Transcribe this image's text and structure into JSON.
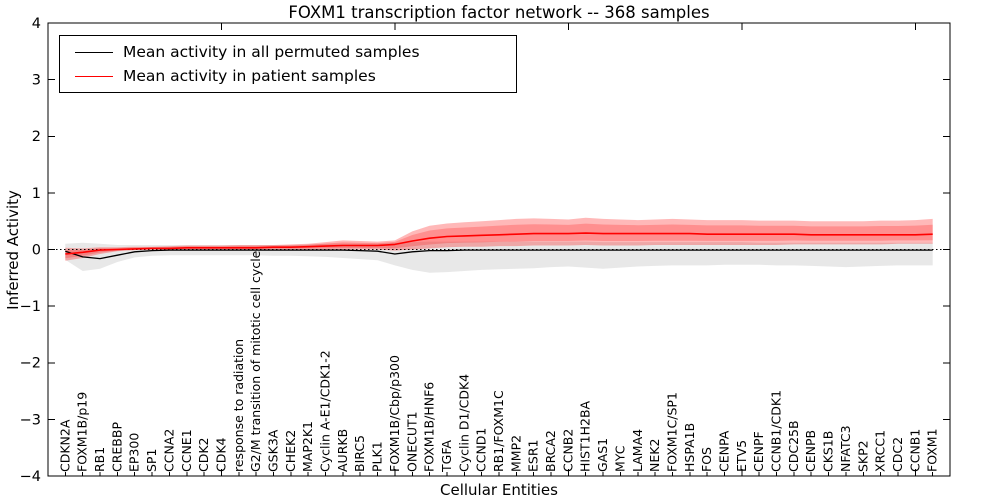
{
  "chart_data": {
    "type": "line",
    "title": "FOXM1 transcription factor network -- 368 samples",
    "xlabel": "Cellular Entities",
    "ylabel": "Inferred Activity",
    "ylim": [
      -4,
      4
    ],
    "xlim": [
      0,
      52
    ],
    "ytick_values": [
      4,
      3,
      2,
      1,
      0,
      -1,
      -2,
      -3,
      -4
    ],
    "ytick_labels": [
      "4",
      "3",
      "2",
      "1",
      "0",
      "−1",
      "−2",
      "−3",
      "−4"
    ],
    "xticks_major": [
      10,
      20,
      30,
      40,
      50
    ],
    "grid": false,
    "legend_position": "upper left",
    "zero_line": 0,
    "categories": [
      "CDKN2A",
      "FOXM1B/p19",
      "RB1",
      "CREBBP",
      "EP300",
      "SP1",
      "CCNA2",
      "CCNE1",
      "CDK2",
      "CDK4",
      "response to radiation",
      "G2/M transition of mitotic cell cycle",
      "GSK3A",
      "CHEK2",
      "MAP2K1",
      "Cyclin A-E1/CDK1-2",
      "AURKB",
      "BIRC5",
      "PLK1",
      "FOXM1B/Cbp/p300",
      "ONECUT1",
      "FOXM1B/HNF6",
      "TGFA",
      "Cyclin D1/CDK4",
      "CCND1",
      "RB1/FOXM1C",
      "MMP2",
      "ESR1",
      "BRCA2",
      "CCNB2",
      "HIST1H2BA",
      "GAS1",
      "MYC",
      "LAMA4",
      "NEK2",
      "FOXM1C/SP1",
      "HSPA1B",
      "FOS",
      "CENPA",
      "ETV5",
      "CENPF",
      "CCNB1/CDK1",
      "CDC25B",
      "CENPB",
      "CKS1B",
      "NFATC3",
      "SKP2",
      "XRCC1",
      "CDC2",
      "CCNB1",
      "FOXM1"
    ],
    "series": [
      {
        "name": "Mean activity in all permuted samples",
        "color": "#000000",
        "values": [
          -0.03,
          -0.13,
          -0.16,
          -0.1,
          -0.04,
          -0.02,
          -0.01,
          -0.01,
          -0.01,
          -0.01,
          -0.01,
          -0.01,
          -0.01,
          -0.01,
          -0.01,
          -0.01,
          -0.01,
          -0.02,
          -0.03,
          -0.08,
          -0.04,
          -0.02,
          -0.02,
          -0.01,
          -0.01,
          -0.01,
          -0.01,
          -0.01,
          -0.01,
          -0.01,
          -0.01,
          -0.01,
          -0.01,
          -0.01,
          -0.01,
          -0.01,
          -0.01,
          -0.01,
          -0.01,
          -0.01,
          -0.01,
          -0.01,
          -0.01,
          -0.01,
          -0.01,
          -0.01,
          -0.01,
          -0.01,
          -0.01,
          -0.01,
          -0.01
        ]
      },
      {
        "name": "Mean activity in patient samples",
        "color": "#ff0000",
        "values": [
          -0.08,
          -0.05,
          -0.01,
          0.0,
          0.01,
          0.02,
          0.02,
          0.03,
          0.03,
          0.03,
          0.03,
          0.03,
          0.04,
          0.04,
          0.05,
          0.06,
          0.07,
          0.07,
          0.07,
          0.09,
          0.15,
          0.2,
          0.23,
          0.24,
          0.25,
          0.26,
          0.27,
          0.28,
          0.28,
          0.28,
          0.29,
          0.28,
          0.28,
          0.28,
          0.28,
          0.28,
          0.28,
          0.27,
          0.27,
          0.27,
          0.27,
          0.27,
          0.27,
          0.26,
          0.26,
          0.26,
          0.26,
          0.26,
          0.26,
          0.26,
          0.27
        ]
      }
    ],
    "bands": [
      {
        "name": "permuted-samples-range",
        "color": "#787878",
        "opacity": 0.17,
        "low": [
          -0.18,
          -0.38,
          -0.34,
          -0.22,
          -0.14,
          -0.11,
          -0.1,
          -0.1,
          -0.1,
          -0.1,
          -0.1,
          -0.1,
          -0.11,
          -0.11,
          -0.12,
          -0.13,
          -0.15,
          -0.17,
          -0.19,
          -0.28,
          -0.36,
          -0.41,
          -0.4,
          -0.38,
          -0.36,
          -0.35,
          -0.34,
          -0.33,
          -0.31,
          -0.3,
          -0.32,
          -0.34,
          -0.32,
          -0.3,
          -0.29,
          -0.28,
          -0.28,
          -0.28,
          -0.27,
          -0.27,
          -0.27,
          -0.28,
          -0.28,
          -0.29,
          -0.3,
          -0.31,
          -0.3,
          -0.29,
          -0.28,
          -0.28,
          -0.28
        ],
        "high": [
          0.1,
          0.12,
          0.1,
          0.08,
          0.08,
          0.08,
          0.08,
          0.08,
          0.08,
          0.08,
          0.08,
          0.08,
          0.08,
          0.08,
          0.09,
          0.1,
          0.1,
          0.1,
          0.1,
          0.12,
          0.13,
          0.14,
          0.14,
          0.14,
          0.14,
          0.14,
          0.14,
          0.14,
          0.14,
          0.14,
          0.14,
          0.13,
          0.13,
          0.13,
          0.13,
          0.13,
          0.13,
          0.13,
          0.13,
          0.13,
          0.12,
          0.12,
          0.12,
          0.12,
          0.12,
          0.12,
          0.12,
          0.12,
          0.12,
          0.12,
          0.12
        ]
      },
      {
        "name": "patient-samples-range",
        "color": "#ff0000",
        "opacity": 0.28,
        "low": [
          -0.2,
          -0.15,
          -0.08,
          -0.03,
          -0.01,
          0.0,
          0.0,
          0.0,
          0.0,
          0.0,
          0.0,
          0.0,
          0.0,
          0.0,
          0.0,
          0.0,
          0.0,
          0.0,
          0.0,
          -0.02,
          0.0,
          0.02,
          0.04,
          0.05,
          0.05,
          0.06,
          0.06,
          0.07,
          0.07,
          0.07,
          0.08,
          0.07,
          0.07,
          0.07,
          0.08,
          0.08,
          0.08,
          0.08,
          0.08,
          0.08,
          0.08,
          0.08,
          0.09,
          0.09,
          0.09,
          0.09,
          0.09,
          0.09,
          0.1,
          0.1,
          0.1
        ],
        "high": [
          0.03,
          0.02,
          0.04,
          0.04,
          0.05,
          0.05,
          0.06,
          0.07,
          0.07,
          0.07,
          0.08,
          0.08,
          0.08,
          0.09,
          0.1,
          0.13,
          0.16,
          0.15,
          0.14,
          0.16,
          0.32,
          0.42,
          0.46,
          0.48,
          0.5,
          0.52,
          0.54,
          0.55,
          0.54,
          0.53,
          0.56,
          0.54,
          0.53,
          0.52,
          0.53,
          0.54,
          0.53,
          0.52,
          0.52,
          0.52,
          0.51,
          0.51,
          0.51,
          0.5,
          0.5,
          0.5,
          0.5,
          0.51,
          0.51,
          0.52,
          0.54
        ]
      }
    ]
  }
}
